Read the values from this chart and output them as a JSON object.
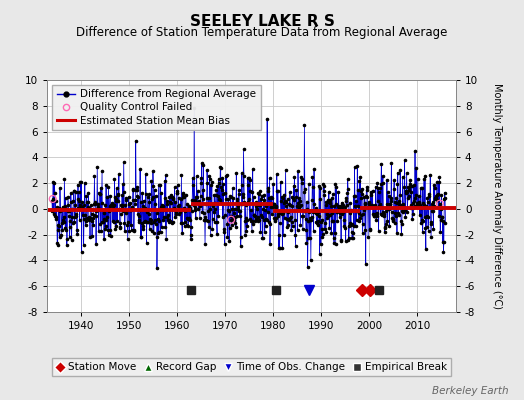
{
  "title": "SEELEY LAKE R S",
  "subtitle": "Difference of Station Temperature Data from Regional Average",
  "ylabel": "Monthly Temperature Anomaly Difference (°C)",
  "xlabel_years": [
    1940,
    1950,
    1960,
    1970,
    1980,
    1990,
    2000,
    2010
  ],
  "xlim": [
    1933,
    2018
  ],
  "ylim": [
    -8,
    10
  ],
  "yticks": [
    -8,
    -6,
    -4,
    -2,
    0,
    2,
    4,
    6,
    8,
    10
  ],
  "background_color": "#e8e8e8",
  "plot_bg_color": "#ffffff",
  "grid_color": "#c8c8c8",
  "bias_segments": [
    {
      "x_start": 1933,
      "x_end": 1963,
      "bias": -0.1
    },
    {
      "x_start": 1963,
      "x_end": 1980,
      "bias": 0.35
    },
    {
      "x_start": 1980,
      "x_end": 1998,
      "bias": -0.2
    },
    {
      "x_start": 1998,
      "x_end": 2018,
      "bias": 0.1
    }
  ],
  "station_moves": [
    1998.5,
    2000.2
  ],
  "empirical_breaks": [
    1963.0,
    1980.5,
    2002.0
  ],
  "time_of_obs_changes": [
    1987.5
  ],
  "record_gaps": [],
  "seed": 42,
  "line_color": "#0000cc",
  "dot_color": "#000000",
  "bias_color": "#cc0000",
  "station_move_color": "#cc0000",
  "record_gap_color": "#006600",
  "tobs_color": "#0000cc",
  "break_color": "#333333",
  "watermark": "Berkeley Earth",
  "title_fontsize": 11,
  "subtitle_fontsize": 8.5,
  "ylabel_fontsize": 7,
  "tick_fontsize": 7.5,
  "legend_fontsize": 7.5,
  "watermark_fontsize": 7.5
}
